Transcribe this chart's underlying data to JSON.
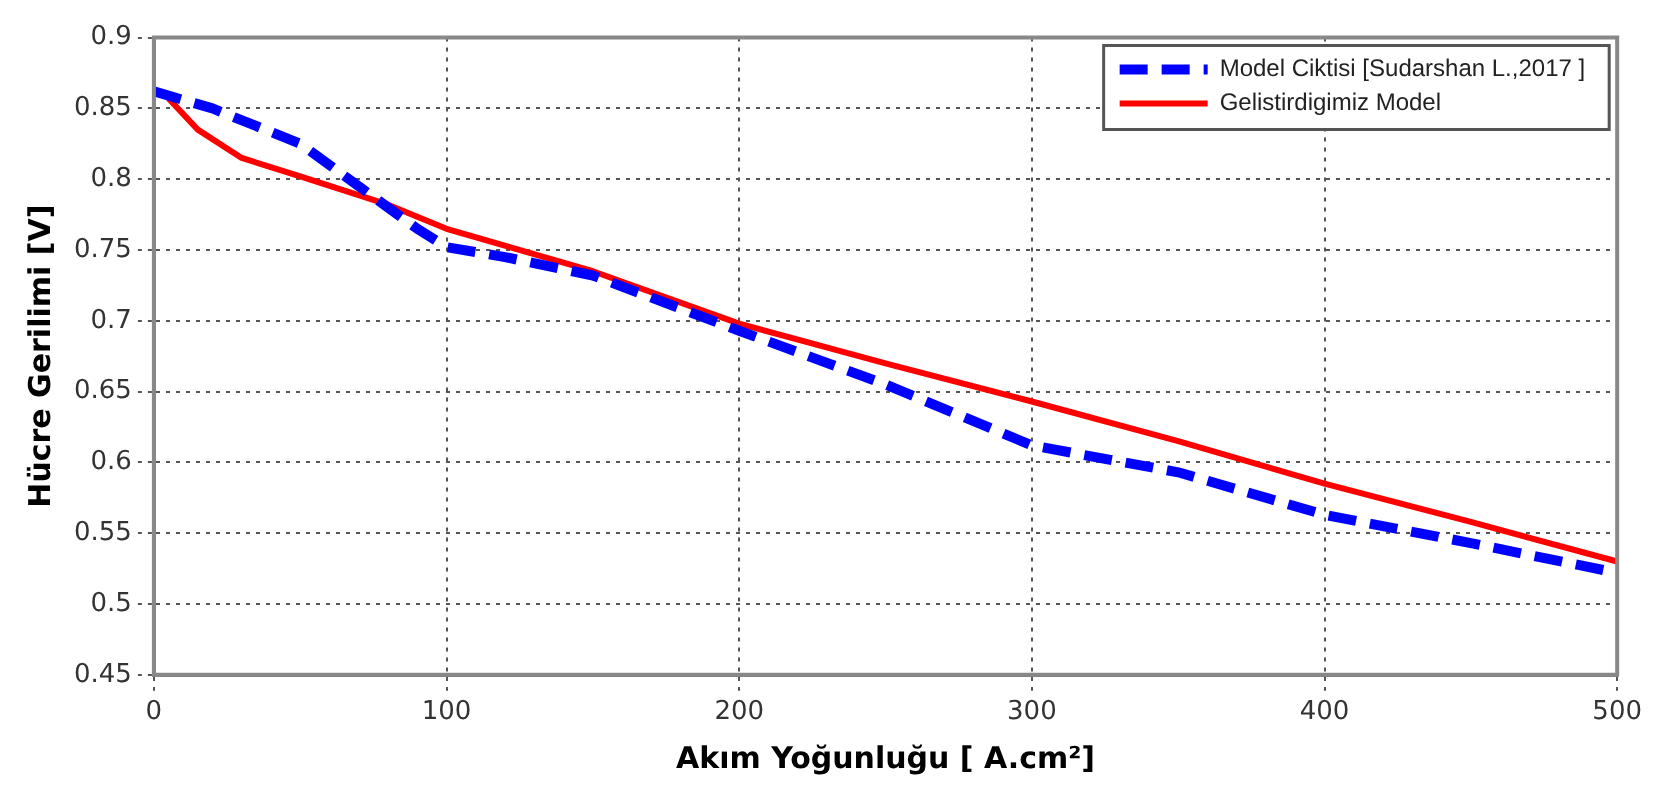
{
  "chart_data": {
    "type": "line",
    "xlabel": "Akım Yoğunluğu [ A.cm²]",
    "ylabel": "Hücre Gerilimi [V]",
    "xlim": [
      0,
      500
    ],
    "xticks": [
      0,
      100,
      200,
      300,
      400,
      500
    ],
    "ylim": [
      0.45,
      0.9
    ],
    "yticks": [
      0.45,
      0.5,
      0.55,
      0.6,
      0.65,
      0.7,
      0.75,
      0.8,
      0.85,
      0.9
    ],
    "grid": true,
    "legend": "top right",
    "marker": "none",
    "series": [
      {
        "name": "Model Ciktisi [Sudarshan L.,2017 ]",
        "color": "#0000ff",
        "line_style": "dashed",
        "x": [
          0,
          20,
          50,
          70,
          90,
          100,
          120,
          150,
          200,
          250,
          300,
          350,
          400,
          450,
          500
        ],
        "values": [
          0.862,
          0.85,
          0.825,
          0.795,
          0.765,
          0.752,
          0.745,
          0.732,
          0.693,
          0.655,
          0.612,
          0.593,
          0.563,
          0.543,
          0.522
        ]
      },
      {
        "name": "Gelistirdigimiz Model",
        "color": "#ff0000",
        "line_style": "solid",
        "x": [
          5,
          15,
          30,
          50,
          80,
          100,
          150,
          200,
          250,
          300,
          350,
          400,
          450,
          500
        ],
        "values": [
          0.857,
          0.835,
          0.815,
          0.802,
          0.782,
          0.765,
          0.735,
          0.698,
          0.67,
          0.643,
          0.615,
          0.585,
          0.558,
          0.53
        ]
      }
    ]
  }
}
